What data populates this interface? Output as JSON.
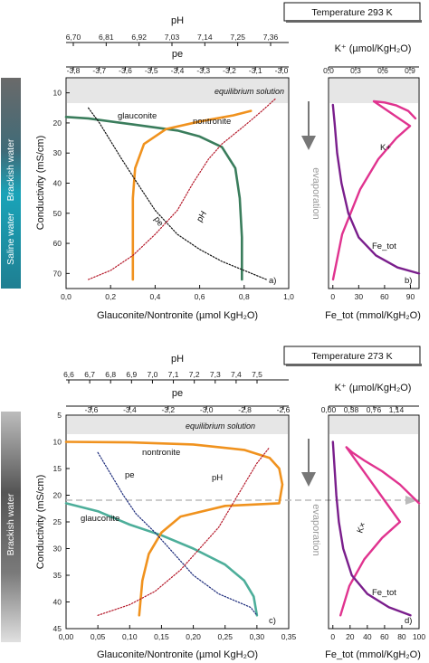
{
  "chart_data": [
    {
      "type": "line",
      "panel": "a",
      "temperature_label": "Temperature 293 K",
      "xlabel": "Glauconite/Nontronite (µmol KgH₂O)",
      "xlim": [
        0,
        1.0
      ],
      "xticks": [
        "0,0",
        "0,2",
        "0,4",
        "0,6",
        "0,8",
        "1,0"
      ],
      "ylabel": "Conductivity (mS/cm)",
      "ylim": [
        5,
        75
      ],
      "yticks": [
        "10",
        "20",
        "30",
        "40",
        "50",
        "60",
        "70"
      ],
      "ph_axis": {
        "label": "pH",
        "ticks": [
          "6,70",
          "6,81",
          "6,92",
          "7,03",
          "7,14",
          "7,25",
          "7,36"
        ]
      },
      "pe_axis": {
        "label": "pe",
        "ticks": [
          "-3,8",
          "-3,7",
          "-3,6",
          "-3,5",
          "-3,4",
          "-3,3",
          "-3,2",
          "-3,1",
          "-3,0"
        ]
      },
      "equilibrium_label": "equilibrium solution",
      "series": [
        {
          "name": "glauconite",
          "color": "#3a7d5c",
          "points": [
            [
              0.0,
              18
            ],
            [
              0.1,
              18.5
            ],
            [
              0.3,
              20.5
            ],
            [
              0.5,
              22.5
            ],
            [
              0.6,
              24.5
            ],
            [
              0.7,
              28
            ],
            [
              0.76,
              35
            ],
            [
              0.78,
              45
            ],
            [
              0.79,
              58
            ],
            [
              0.79,
              72
            ]
          ]
        },
        {
          "name": "nontronite",
          "color": "#f0921e",
          "points": [
            [
              0.3,
              72
            ],
            [
              0.3,
              60
            ],
            [
              0.3,
              45
            ],
            [
              0.31,
              35
            ],
            [
              0.35,
              27
            ],
            [
              0.45,
              22
            ],
            [
              0.6,
              19.5
            ],
            [
              0.75,
              17.5
            ],
            [
              0.83,
              16
            ]
          ]
        },
        {
          "name": "pe",
          "color": "#111111",
          "points": [
            [
              0.1,
              15
            ],
            [
              0.15,
              20
            ],
            [
              0.2,
              26
            ],
            [
              0.25,
              32
            ],
            [
              0.32,
              40
            ],
            [
              0.4,
              49
            ],
            [
              0.5,
              57
            ],
            [
              0.6,
              62
            ],
            [
              0.7,
              66
            ],
            [
              0.8,
              69
            ],
            [
              0.9,
              72
            ]
          ]
        },
        {
          "name": "pH",
          "color": "#b5192a",
          "points": [
            [
              0.1,
              72
            ],
            [
              0.2,
              69
            ],
            [
              0.3,
              64
            ],
            [
              0.4,
              57
            ],
            [
              0.5,
              49
            ],
            [
              0.57,
              40
            ],
            [
              0.64,
              32
            ],
            [
              0.7,
              27
            ],
            [
              0.8,
              21
            ],
            [
              0.88,
              16
            ],
            [
              0.94,
              12
            ]
          ]
        }
      ],
      "annotations": [
        "glauconite",
        "nontronite",
        "pe",
        "pH",
        "a)"
      ],
      "water_bands": [
        "Brackish water",
        "Saline water"
      ]
    },
    {
      "type": "line",
      "panel": "b",
      "xlabel": "Fe_tot (mmol/KgH₂O)",
      "xlim": [
        -5,
        100
      ],
      "xticks": [
        "0",
        "30",
        "60",
        "90"
      ],
      "k_axis": {
        "label": "K⁺ (µmol/KgH₂O)",
        "xlim": [
          0,
          1.0
        ],
        "ticks": [
          "0,0",
          "0,3",
          "0,6",
          "0,9"
        ]
      },
      "ylim": [
        5,
        75
      ],
      "evaporation_label": "evaporation",
      "series": [
        {
          "name": "K+",
          "color": "#e0338f",
          "points": [
            [
              0.96,
              18.5
            ],
            [
              0.88,
              16
            ],
            [
              0.75,
              14.2
            ],
            [
              0.62,
              13.2
            ],
            [
              0.5,
              12.8
            ],
            [
              0.9,
              21
            ],
            [
              0.75,
              25
            ],
            [
              0.55,
              32
            ],
            [
              0.35,
              42
            ],
            [
              0.15,
              57
            ],
            [
              0.05,
              72
            ]
          ]
        },
        {
          "name": "Fe_tot",
          "color": "#7a1e8c",
          "points": [
            [
              0,
              14
            ],
            [
              2,
              20
            ],
            [
              5,
              30
            ],
            [
              10,
              40
            ],
            [
              18,
              50
            ],
            [
              30,
              58
            ],
            [
              50,
              64
            ],
            [
              75,
              68
            ],
            [
              100,
              70
            ]
          ]
        }
      ],
      "annotations": [
        "K+",
        "Fe_tot",
        "b)"
      ]
    },
    {
      "type": "line",
      "panel": "c",
      "temperature_label": "Temperature 273 K",
      "xlabel": "Glauconite/Nontronite (µmol KgH₂O)",
      "xlim": [
        0,
        0.35
      ],
      "xticks": [
        "0,00",
        "0,05",
        "0,10",
        "0,15",
        "0,20",
        "0,25",
        "0,30",
        "0,35"
      ],
      "ylabel": "Conductivity (mS/cm)",
      "ylim": [
        5,
        45
      ],
      "yticks": [
        "5",
        "10",
        "15",
        "20",
        "25",
        "30",
        "35",
        "40",
        "45"
      ],
      "ph_axis": {
        "label": "pH",
        "ticks": [
          "6,6",
          "6,7",
          "6,8",
          "6,9",
          "7,0",
          "7,1",
          "7,2",
          "7,3",
          "7,4",
          "7,5"
        ]
      },
      "pe_axis": {
        "label": "pe",
        "ticks": [
          "-3,6",
          "-3,4",
          "-3,2",
          "-3,0",
          "-2,8",
          "-2,6"
        ]
      },
      "equilibrium_label": "equilibrium solution",
      "dashed_line_y": 21.5,
      "series": [
        {
          "name": "glauconite",
          "color": "#4dae9a",
          "points": [
            [
              0.0,
              21.5
            ],
            [
              0.05,
              23
            ],
            [
              0.1,
              25.5
            ],
            [
              0.15,
              27.5
            ],
            [
              0.2,
              30
            ],
            [
              0.25,
              33
            ],
            [
              0.28,
              36
            ],
            [
              0.295,
              39
            ],
            [
              0.3,
              42.5
            ]
          ]
        },
        {
          "name": "nontronite",
          "color": "#f0921e",
          "points": [
            [
              0.0,
              10
            ],
            [
              0.1,
              10.1
            ],
            [
              0.2,
              10.5
            ],
            [
              0.28,
              11.5
            ],
            [
              0.32,
              13
            ],
            [
              0.335,
              15
            ],
            [
              0.34,
              18
            ],
            [
              0.335,
              21.5
            ],
            [
              0.25,
              22
            ],
            [
              0.18,
              24
            ],
            [
              0.15,
              27
            ],
            [
              0.13,
              31
            ],
            [
              0.12,
              36
            ],
            [
              0.115,
              42.5
            ]
          ]
        },
        {
          "name": "pe",
          "color": "#1b2a7a",
          "points": [
            [
              0.05,
              12
            ],
            [
              0.07,
              16
            ],
            [
              0.09,
              20
            ],
            [
              0.11,
              23.5
            ],
            [
              0.14,
              27
            ],
            [
              0.17,
              31
            ],
            [
              0.2,
              35
            ],
            [
              0.24,
              38.5
            ],
            [
              0.29,
              41
            ],
            [
              0.3,
              42.5
            ]
          ]
        },
        {
          "name": "pH",
          "color": "#b5192a",
          "points": [
            [
              0.05,
              42.5
            ],
            [
              0.1,
              40.5
            ],
            [
              0.14,
              38
            ],
            [
              0.18,
              34
            ],
            [
              0.21,
              30
            ],
            [
              0.24,
              26
            ],
            [
              0.26,
              22
            ],
            [
              0.28,
              18
            ],
            [
              0.3,
              14
            ],
            [
              0.32,
              11
            ]
          ]
        }
      ],
      "annotations": [
        "glauconite",
        "nontronite",
        "pe",
        "pH",
        "c)"
      ],
      "water_bands": [
        "Brackish water"
      ]
    },
    {
      "type": "line",
      "panel": "d",
      "xlabel": "Fe_tot (mmol/KgH₂O)",
      "xlim": [
        -5,
        100
      ],
      "xticks": [
        "0",
        "20",
        "40",
        "60",
        "80",
        "100"
      ],
      "k_axis": {
        "label": "K⁺ (µmol/KgH₂O)",
        "xlim": [
          0,
          1.52
        ],
        "ticks": [
          "0,00",
          "0,38",
          "0,76",
          "1,14"
        ]
      },
      "ylim": [
        5,
        45
      ],
      "evaporation_label": "evaporation",
      "series": [
        {
          "name": "K+",
          "color": "#e0338f",
          "points": [
            [
              1.52,
              21.5
            ],
            [
              1.2,
              18
            ],
            [
              0.9,
              15.5
            ],
            [
              0.6,
              13.5
            ],
            [
              0.4,
              12
            ],
            [
              0.3,
              11
            ],
            [
              1.2,
              25
            ],
            [
              0.9,
              28
            ],
            [
              0.6,
              32
            ],
            [
              0.35,
              37
            ],
            [
              0.2,
              42.5
            ]
          ]
        },
        {
          "name": "Fe_tot",
          "color": "#7a1e8c",
          "points": [
            [
              0,
              10
            ],
            [
              2,
              15
            ],
            [
              4,
              20
            ],
            [
              7,
              25
            ],
            [
              12,
              30
            ],
            [
              22,
              35
            ],
            [
              40,
              38.5
            ],
            [
              65,
              41
            ],
            [
              90,
              42.5
            ]
          ]
        }
      ],
      "annotations": [
        "K×",
        "Fe_tot",
        "d)"
      ]
    }
  ]
}
